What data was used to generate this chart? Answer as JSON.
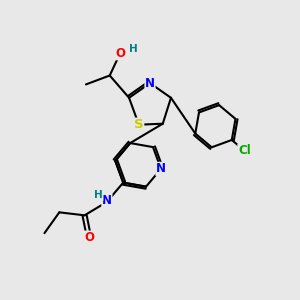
{
  "bg_color": "#e8e8e8",
  "bond_color": "#000000",
  "bond_width": 1.5,
  "atom_colors": {
    "S": "#cccc00",
    "N": "#0000ff",
    "O": "#ff0000",
    "Cl": "#00aa00",
    "H": "#008080",
    "C": "#000000"
  },
  "font_size": 8.5,
  "fig_size": [
    3.0,
    3.0
  ],
  "dpi": 100
}
